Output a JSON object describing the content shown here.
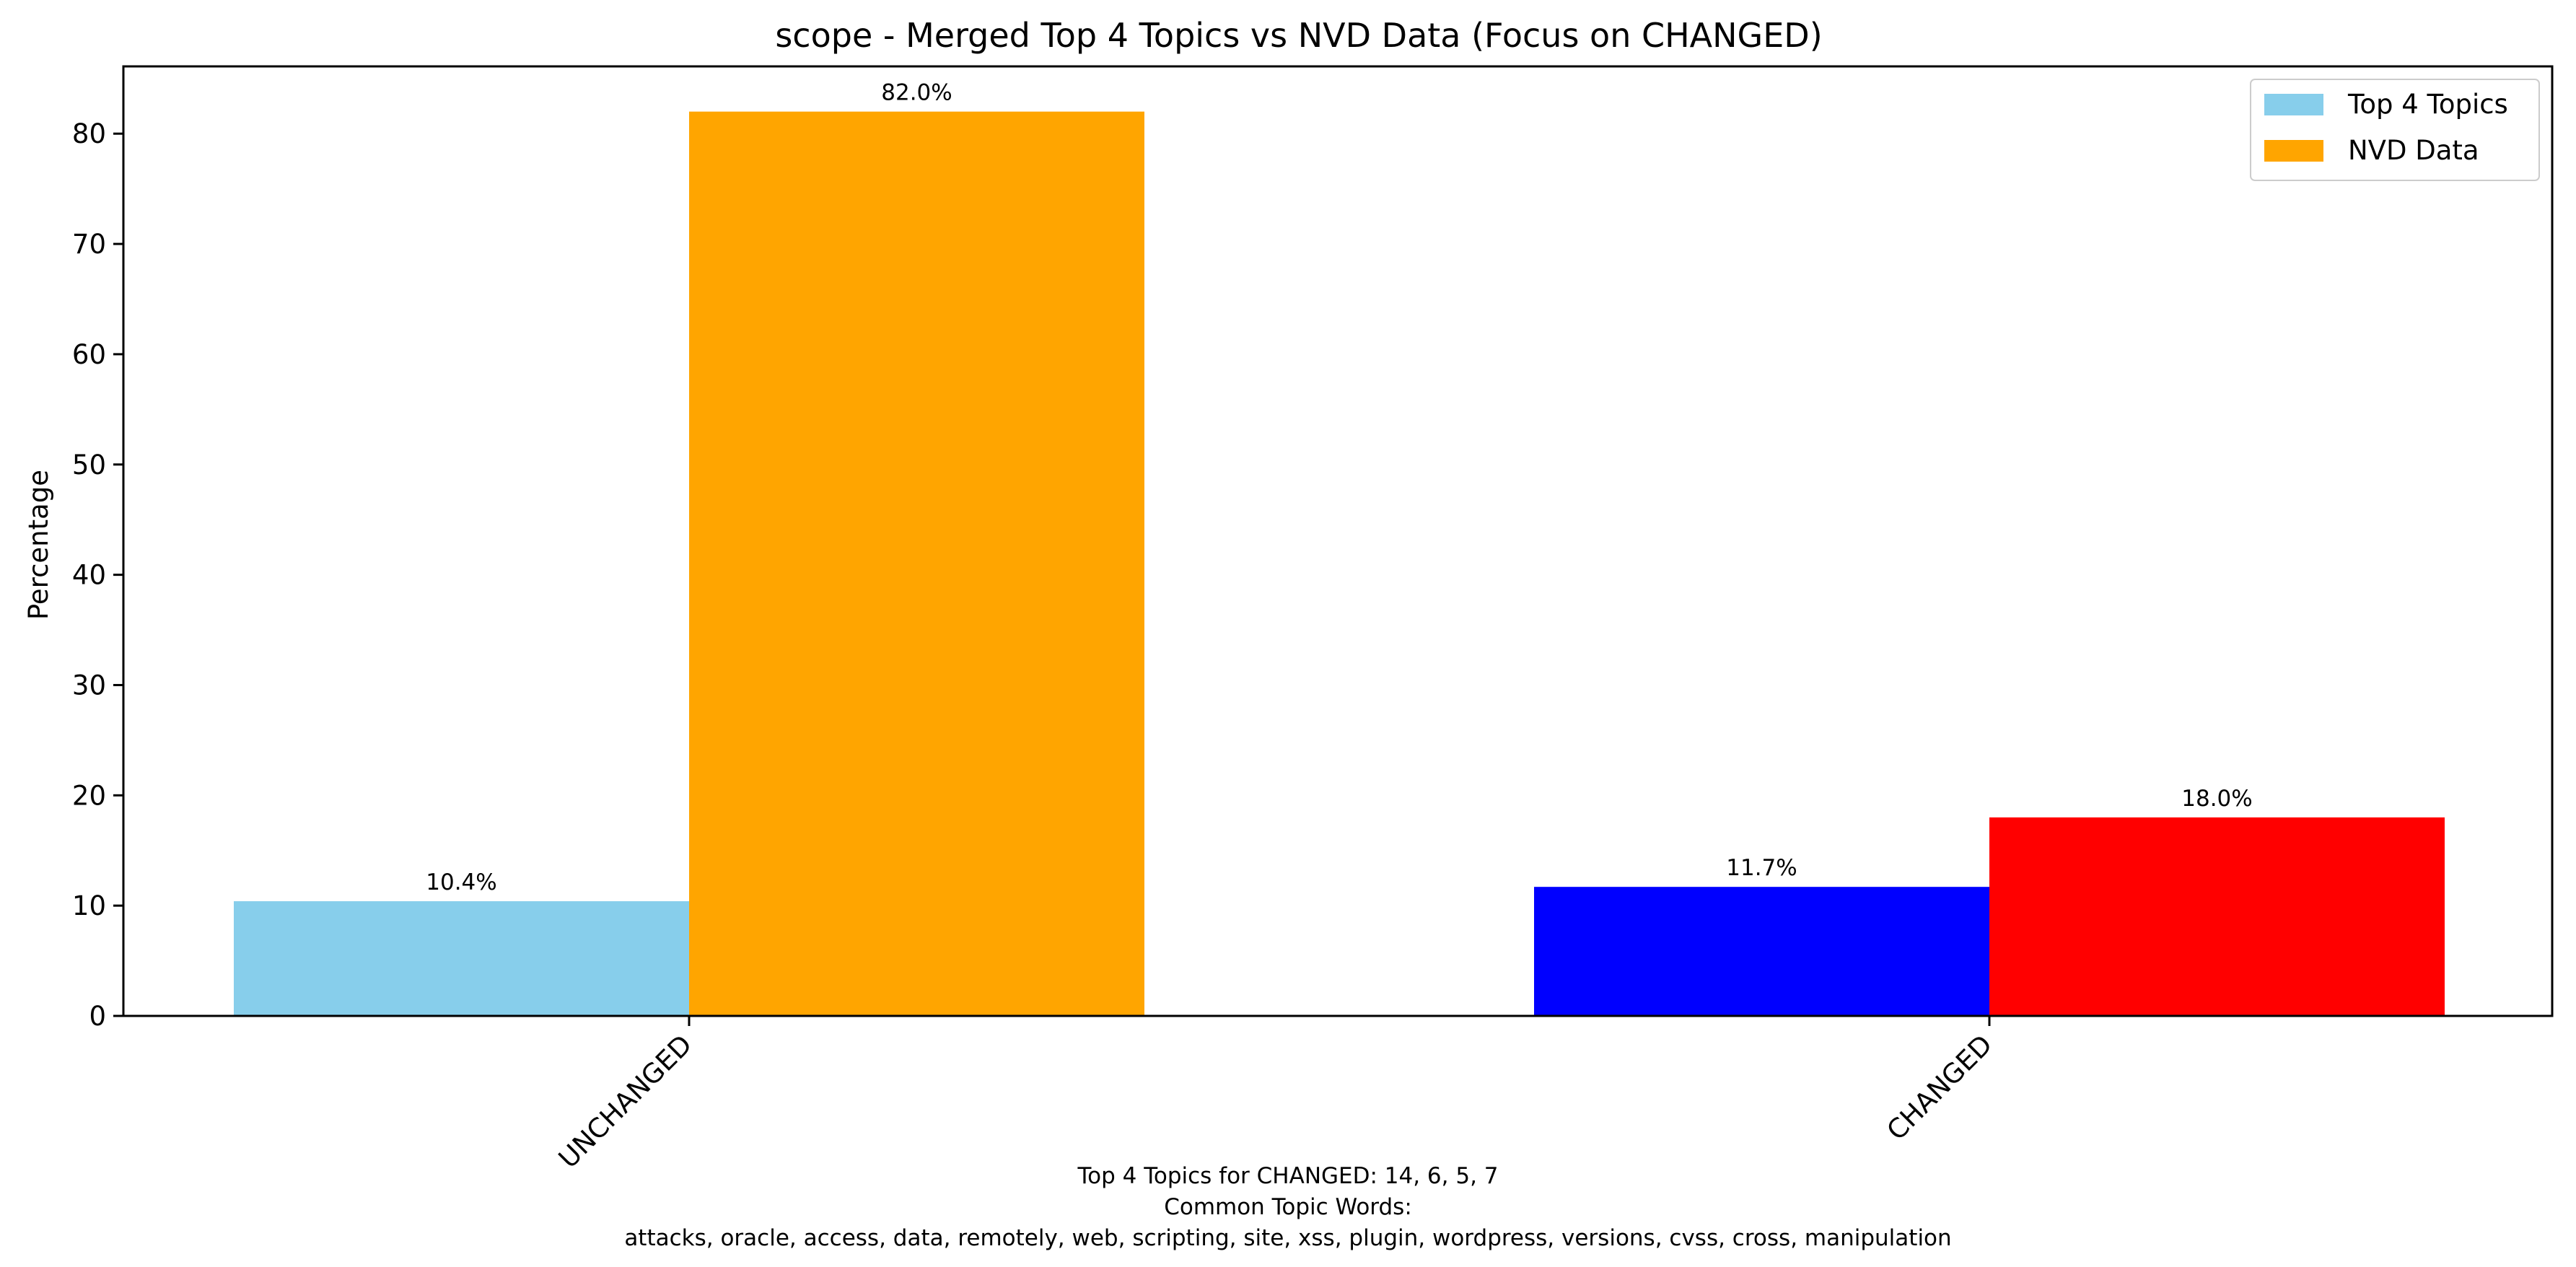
{
  "chart_data": {
    "type": "bar",
    "title": "scope - Merged Top 4 Topics vs NVD Data (Focus on CHANGED)",
    "xlabel": "",
    "ylabel": "Percentage",
    "categories": [
      "UNCHANGED",
      "CHANGED"
    ],
    "series": [
      {
        "name": "Top 4 Topics",
        "values": [
          10.4,
          11.7
        ],
        "colors": [
          "#87CEEB",
          "#0000FF"
        ],
        "labels": [
          "10.4%",
          "11.7%"
        ]
      },
      {
        "name": "NVD Data",
        "values": [
          82.0,
          18.0
        ],
        "colors": [
          "#FFA500",
          "#FF0000"
        ],
        "labels": [
          "82.0%",
          "18.0%"
        ]
      }
    ],
    "legend_colors": [
      "#87CEEB",
      "#FFA500"
    ],
    "ylim": [
      0,
      86.1
    ],
    "yticks": [
      0,
      10,
      20,
      30,
      40,
      50,
      60,
      70,
      80
    ],
    "grid": false,
    "legend_position": "top-right"
  },
  "footer": {
    "line1": "Top 4 Topics for CHANGED: 14, 6, 5, 7",
    "line2": "Common Topic Words:",
    "line3": "attacks,  oracle,  access,  data,  remotely,  web,  scripting,  site,  xss,  plugin,  wordpress,  versions,  cvss,  cross,  manipulation"
  }
}
